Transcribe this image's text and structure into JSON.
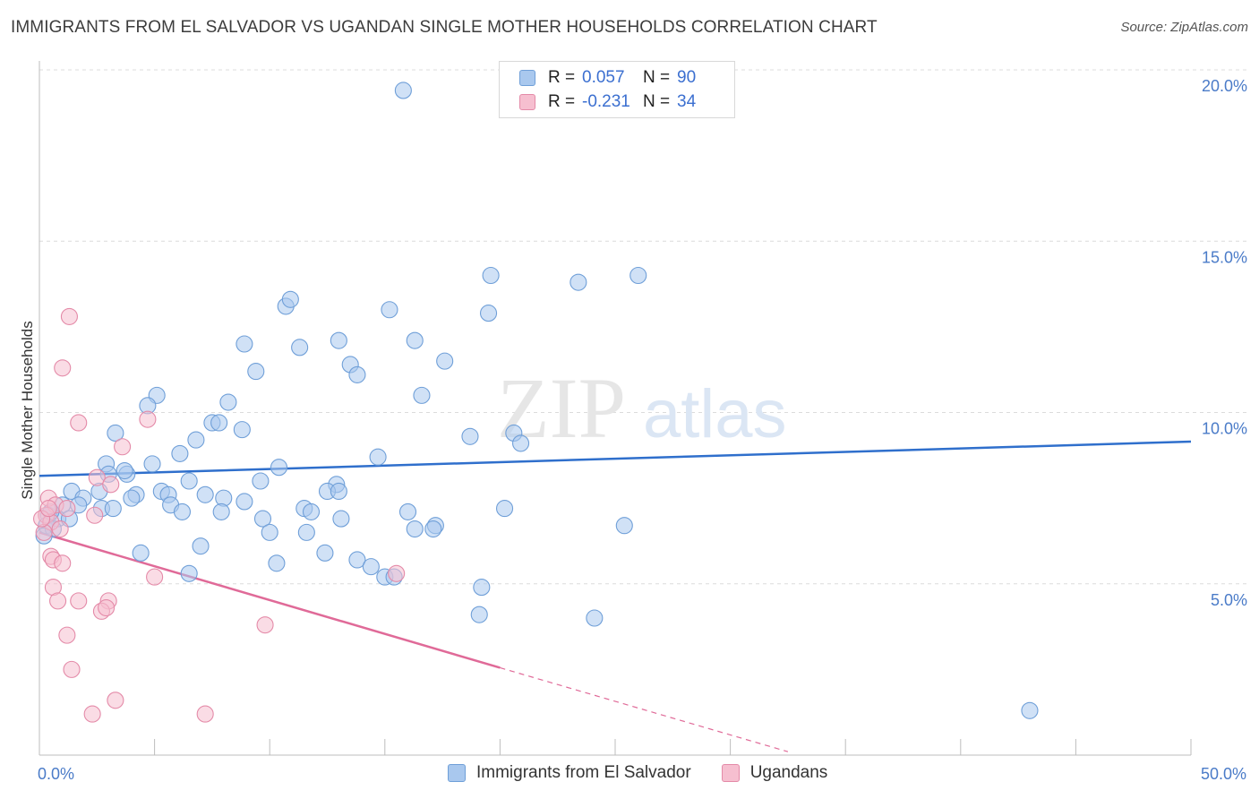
{
  "title": "IMMIGRANTS FROM EL SALVADOR VS UGANDAN SINGLE MOTHER HOUSEHOLDS CORRELATION CHART",
  "source": "Source: ZipAtlas.com",
  "watermark": {
    "zip": "ZIP",
    "atlas": "atlas"
  },
  "legend_top": [
    {
      "label": "R = ",
      "r": "0.057",
      "n_label": "N = ",
      "n": "90",
      "color": "#a9c8ee",
      "border": "#6f9fd8"
    },
    {
      "label": "R = ",
      "r": "-0.231",
      "n_label": "N = ",
      "n": "34",
      "color": "#f6bfd0",
      "border": "#e48aa8"
    }
  ],
  "legend_bottom": [
    {
      "name": "Immigrants from El Salvador",
      "color": "#a9c8ee",
      "border": "#6f9fd8"
    },
    {
      "name": "Ugandans",
      "color": "#f6bfd0",
      "border": "#e48aa8"
    }
  ],
  "chart_data": {
    "type": "scatter",
    "ylabel": "Single Mother Households",
    "xlim": [
      0,
      50
    ],
    "ylim": [
      0,
      20
    ],
    "x_tick_labels": [
      {
        "value": 0,
        "label": "0.0%"
      },
      {
        "value": 50,
        "label": "50.0%"
      }
    ],
    "y_tick_labels": [
      {
        "value": 5,
        "label": "5.0%"
      },
      {
        "value": 10,
        "label": "10.0%"
      },
      {
        "value": 15,
        "label": "15.0%"
      },
      {
        "value": 20,
        "label": "20.0%"
      }
    ],
    "series": [
      {
        "name": "Immigrants from El Salvador",
        "color": "#a9c8ee",
        "stroke": "#6f9fd8",
        "trend_color": "#2f6fcc",
        "trend": {
          "x0": 0,
          "y0": 8.15,
          "x1": 50,
          "y1": 9.15
        },
        "points": [
          [
            15.8,
            19.4
          ],
          [
            19.6,
            14.0
          ],
          [
            23.4,
            13.8
          ],
          [
            26.0,
            14.0
          ],
          [
            10.7,
            13.1
          ],
          [
            10.9,
            13.3
          ],
          [
            15.2,
            13.0
          ],
          [
            19.5,
            12.9
          ],
          [
            8.9,
            12.0
          ],
          [
            11.3,
            11.9
          ],
          [
            13.0,
            12.1
          ],
          [
            16.3,
            12.1
          ],
          [
            9.4,
            11.2
          ],
          [
            13.5,
            11.4
          ],
          [
            17.6,
            11.5
          ],
          [
            13.8,
            11.1
          ],
          [
            5.1,
            10.5
          ],
          [
            4.7,
            10.2
          ],
          [
            8.2,
            10.3
          ],
          [
            16.6,
            10.5
          ],
          [
            7.5,
            9.7
          ],
          [
            7.8,
            9.7
          ],
          [
            3.3,
            9.4
          ],
          [
            8.8,
            9.5
          ],
          [
            6.8,
            9.2
          ],
          [
            18.7,
            9.3
          ],
          [
            20.6,
            9.4
          ],
          [
            20.9,
            9.1
          ],
          [
            6.1,
            8.8
          ],
          [
            14.7,
            8.7
          ],
          [
            2.9,
            8.5
          ],
          [
            4.9,
            8.5
          ],
          [
            10.4,
            8.4
          ],
          [
            3.0,
            8.2
          ],
          [
            3.8,
            8.2
          ],
          [
            3.7,
            8.3
          ],
          [
            6.5,
            8.0
          ],
          [
            9.6,
            8.0
          ],
          [
            12.9,
            7.9
          ],
          [
            12.5,
            7.7
          ],
          [
            13.0,
            7.7
          ],
          [
            1.4,
            7.7
          ],
          [
            2.6,
            7.7
          ],
          [
            5.3,
            7.7
          ],
          [
            5.6,
            7.6
          ],
          [
            7.2,
            7.6
          ],
          [
            8.0,
            7.5
          ],
          [
            4.2,
            7.6
          ],
          [
            4.0,
            7.5
          ],
          [
            1.9,
            7.5
          ],
          [
            1.0,
            7.3
          ],
          [
            1.7,
            7.3
          ],
          [
            2.7,
            7.2
          ],
          [
            3.2,
            7.2
          ],
          [
            5.7,
            7.3
          ],
          [
            6.2,
            7.1
          ],
          [
            8.9,
            7.4
          ],
          [
            7.9,
            7.1
          ],
          [
            11.5,
            7.2
          ],
          [
            11.8,
            7.1
          ],
          [
            16.0,
            7.1
          ],
          [
            20.2,
            7.2
          ],
          [
            0.4,
            7.0
          ],
          [
            0.8,
            6.9
          ],
          [
            1.3,
            6.9
          ],
          [
            9.7,
            6.9
          ],
          [
            13.1,
            6.9
          ],
          [
            17.2,
            6.7
          ],
          [
            16.3,
            6.6
          ],
          [
            17.1,
            6.6
          ],
          [
            25.4,
            6.7
          ],
          [
            0.3,
            6.7
          ],
          [
            0.6,
            6.6
          ],
          [
            10.0,
            6.5
          ],
          [
            11.6,
            6.5
          ],
          [
            0.2,
            6.4
          ],
          [
            7.0,
            6.1
          ],
          [
            4.4,
            5.9
          ],
          [
            12.4,
            5.9
          ],
          [
            13.8,
            5.7
          ],
          [
            10.3,
            5.6
          ],
          [
            14.4,
            5.5
          ],
          [
            6.5,
            5.3
          ],
          [
            15.0,
            5.2
          ],
          [
            15.4,
            5.2
          ],
          [
            19.2,
            4.9
          ],
          [
            19.1,
            4.1
          ],
          [
            24.1,
            4.0
          ],
          [
            43.0,
            1.3
          ],
          [
            0.5,
            7.1
          ]
        ]
      },
      {
        "name": "Ugandans",
        "color": "#f6bfd0",
        "stroke": "#e48aa8",
        "trend_color": "#e06a98",
        "trend": {
          "x0": 0,
          "y0": 6.5,
          "x1": 20.0,
          "y1": 2.55
        },
        "trend_dashed": {
          "x0": 20.0,
          "y0": 2.55,
          "x1": 32.5,
          "y1": 0.1
        },
        "points": [
          [
            1.3,
            12.8
          ],
          [
            1.0,
            11.3
          ],
          [
            1.7,
            9.7
          ],
          [
            4.7,
            9.8
          ],
          [
            3.6,
            9.0
          ],
          [
            2.5,
            8.1
          ],
          [
            3.1,
            7.9
          ],
          [
            0.4,
            7.5
          ],
          [
            0.7,
            7.3
          ],
          [
            1.2,
            7.2
          ],
          [
            0.3,
            7.0
          ],
          [
            0.5,
            6.8
          ],
          [
            2.4,
            7.0
          ],
          [
            0.9,
            6.6
          ],
          [
            0.2,
            6.5
          ],
          [
            0.5,
            5.8
          ],
          [
            0.6,
            5.7
          ],
          [
            1.0,
            5.6
          ],
          [
            5.0,
            5.2
          ],
          [
            15.5,
            5.3
          ],
          [
            0.6,
            4.9
          ],
          [
            0.8,
            4.5
          ],
          [
            1.7,
            4.5
          ],
          [
            3.0,
            4.5
          ],
          [
            2.7,
            4.2
          ],
          [
            2.9,
            4.3
          ],
          [
            9.8,
            3.8
          ],
          [
            1.2,
            3.5
          ],
          [
            1.4,
            2.5
          ],
          [
            3.3,
            1.6
          ],
          [
            2.3,
            1.2
          ],
          [
            7.2,
            1.2
          ],
          [
            0.1,
            6.9
          ],
          [
            0.4,
            7.2
          ]
        ]
      }
    ]
  }
}
